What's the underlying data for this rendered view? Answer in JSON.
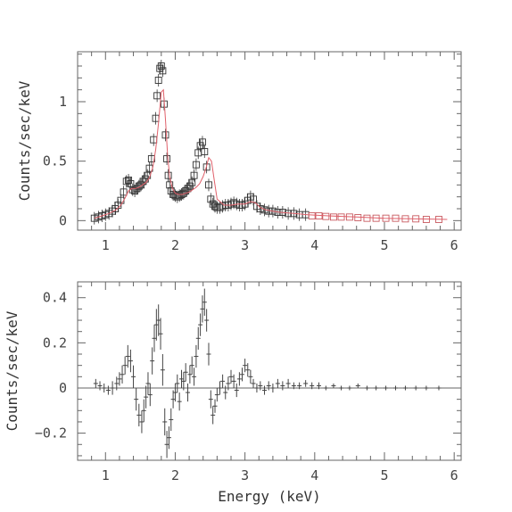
{
  "chart_data": [
    {
      "type": "scatter",
      "panel": "top",
      "ylabel": "Counts/sec/keV",
      "xlabel": "",
      "xlim": [
        0.6,
        6.1
      ],
      "ylim": [
        -0.08,
        1.42
      ],
      "x_ticks": [
        1,
        2,
        3,
        4,
        5,
        6
      ],
      "y_ticks": [
        0,
        0.5,
        1
      ],
      "y_tick_labels": [
        "0",
        "0.5",
        "1"
      ],
      "x_tick_labels": [
        "1",
        "2",
        "3",
        "4",
        "5",
        "6"
      ],
      "grid": false,
      "series": [
        {
          "kind": "data",
          "marker": "square",
          "color": "#333333",
          "x": [
            0.84,
            0.9,
            0.95,
            1.0,
            1.05,
            1.1,
            1.14,
            1.18,
            1.22,
            1.26,
            1.3,
            1.33,
            1.36,
            1.39,
            1.42,
            1.45,
            1.48,
            1.51,
            1.54,
            1.57,
            1.6,
            1.63,
            1.66,
            1.69,
            1.72,
            1.74,
            1.76,
            1.78,
            1.8,
            1.82,
            1.84,
            1.86,
            1.88,
            1.9,
            1.92,
            1.94,
            1.97,
            2.0,
            2.03,
            2.06,
            2.09,
            2.12,
            2.15,
            2.18,
            2.21,
            2.24,
            2.27,
            2.3,
            2.33,
            2.36,
            2.39,
            2.42,
            2.45,
            2.48,
            2.51,
            2.54,
            2.57,
            2.6,
            2.64,
            2.68,
            2.72,
            2.76,
            2.8,
            2.84,
            2.88,
            2.92,
            2.96,
            3.0,
            3.04,
            3.08,
            3.12,
            3.17,
            3.22,
            3.28,
            3.34,
            3.4,
            3.47,
            3.54,
            3.62,
            3.7,
            3.78,
            3.87,
            3.96,
            4.06,
            4.16,
            4.27,
            4.38,
            4.5,
            4.62,
            4.75,
            4.88,
            5.02,
            5.16,
            5.3,
            5.45,
            5.6,
            5.78
          ],
          "y": [
            0.02,
            0.03,
            0.04,
            0.05,
            0.06,
            0.08,
            0.1,
            0.13,
            0.17,
            0.24,
            0.33,
            0.34,
            0.31,
            0.26,
            0.25,
            0.27,
            0.29,
            0.3,
            0.33,
            0.35,
            0.38,
            0.44,
            0.52,
            0.68,
            0.86,
            1.05,
            1.18,
            1.28,
            1.3,
            1.26,
            0.98,
            0.72,
            0.52,
            0.38,
            0.3,
            0.25,
            0.22,
            0.21,
            0.2,
            0.21,
            0.22,
            0.23,
            0.25,
            0.27,
            0.29,
            0.32,
            0.38,
            0.47,
            0.57,
            0.63,
            0.66,
            0.58,
            0.45,
            0.3,
            0.18,
            0.14,
            0.12,
            0.11,
            0.11,
            0.12,
            0.13,
            0.13,
            0.14,
            0.15,
            0.14,
            0.13,
            0.13,
            0.14,
            0.17,
            0.2,
            0.18,
            0.12,
            0.1,
            0.09,
            0.08,
            0.08,
            0.07,
            0.07,
            0.06,
            0.06,
            0.05,
            0.05,
            0.04,
            0.04,
            0.035,
            0.03,
            0.03,
            0.03,
            0.025,
            0.02,
            0.02,
            0.02,
            0.02,
            0.015,
            0.015,
            0.01,
            0.01
          ]
        },
        {
          "kind": "model",
          "color": "#e0606a",
          "x": [
            0.84,
            0.95,
            1.05,
            1.15,
            1.22,
            1.28,
            1.33,
            1.38,
            1.43,
            1.48,
            1.53,
            1.58,
            1.63,
            1.68,
            1.72,
            1.76,
            1.8,
            1.83,
            1.86,
            1.89,
            1.92,
            1.96,
            2.0,
            2.05,
            2.1,
            2.15,
            2.2,
            2.25,
            2.3,
            2.35,
            2.4,
            2.44,
            2.48,
            2.52,
            2.56,
            2.6,
            2.7,
            2.8,
            2.9,
            3.0,
            3.08,
            3.15,
            3.22,
            3.3,
            3.4,
            3.5,
            3.7,
            3.9,
            4.2,
            4.6,
            5.0,
            5.4,
            5.9
          ],
          "y": [
            0.02,
            0.04,
            0.06,
            0.09,
            0.13,
            0.19,
            0.25,
            0.27,
            0.27,
            0.28,
            0.3,
            0.32,
            0.36,
            0.45,
            0.6,
            0.82,
            1.08,
            1.1,
            0.85,
            0.55,
            0.37,
            0.27,
            0.23,
            0.22,
            0.22,
            0.23,
            0.24,
            0.26,
            0.28,
            0.31,
            0.37,
            0.44,
            0.53,
            0.5,
            0.34,
            0.18,
            0.13,
            0.13,
            0.14,
            0.14,
            0.16,
            0.15,
            0.11,
            0.09,
            0.08,
            0.07,
            0.06,
            0.05,
            0.04,
            0.03,
            0.02,
            0.015,
            0.01
          ]
        }
      ]
    },
    {
      "type": "scatter",
      "panel": "bottom",
      "ylabel": "Counts/sec/keV",
      "xlabel": "Energy (keV)",
      "xlim": [
        0.6,
        6.1
      ],
      "ylim": [
        -0.32,
        0.47
      ],
      "x_ticks": [
        1,
        2,
        3,
        4,
        5,
        6
      ],
      "x_tick_labels": [
        "1",
        "2",
        "3",
        "4",
        "5",
        "6"
      ],
      "y_ticks": [
        -0.2,
        0,
        0.2,
        0.4
      ],
      "y_tick_labels": [
        "−0.2",
        "0",
        "0.2",
        "0.4"
      ],
      "zero_line": true,
      "grid": false,
      "series": [
        {
          "kind": "residuals",
          "marker": "errorbar",
          "color": "#444444",
          "x": [
            0.86,
            0.92,
            0.98,
            1.04,
            1.1,
            1.16,
            1.2,
            1.24,
            1.28,
            1.32,
            1.36,
            1.4,
            1.44,
            1.48,
            1.52,
            1.55,
            1.58,
            1.61,
            1.64,
            1.67,
            1.7,
            1.73,
            1.76,
            1.79,
            1.82,
            1.85,
            1.88,
            1.91,
            1.94,
            1.97,
            2.0,
            2.03,
            2.06,
            2.09,
            2.12,
            2.15,
            2.18,
            2.21,
            2.24,
            2.27,
            2.3,
            2.33,
            2.36,
            2.39,
            2.42,
            2.45,
            2.48,
            2.51,
            2.54,
            2.57,
            2.6,
            2.64,
            2.68,
            2.72,
            2.76,
            2.8,
            2.84,
            2.88,
            2.92,
            2.96,
            3.0,
            3.04,
            3.08,
            3.12,
            3.17,
            3.22,
            3.28,
            3.34,
            3.4,
            3.47,
            3.54,
            3.62,
            3.7,
            3.78,
            3.87,
            3.96,
            4.06,
            4.16,
            4.27,
            4.38,
            4.5,
            4.62,
            4.75,
            4.88,
            5.02,
            5.16,
            5.3,
            5.45,
            5.6,
            5.78
          ],
          "y": [
            0.02,
            0.01,
            0.0,
            -0.01,
            0.0,
            0.02,
            0.04,
            0.06,
            0.1,
            0.14,
            0.12,
            0.05,
            -0.05,
            -0.12,
            -0.15,
            -0.1,
            -0.04,
            0.02,
            -0.03,
            0.12,
            0.22,
            0.28,
            0.3,
            0.24,
            0.08,
            -0.15,
            -0.25,
            -0.22,
            -0.14,
            -0.05,
            -0.02,
            0.02,
            -0.06,
            0.04,
            0.03,
            0.07,
            -0.02,
            0.06,
            0.1,
            0.05,
            0.14,
            0.22,
            0.28,
            0.35,
            0.38,
            0.3,
            0.15,
            -0.05,
            -0.12,
            -0.08,
            -0.03,
            0.0,
            0.03,
            -0.02,
            0.02,
            0.05,
            0.03,
            -0.01,
            0.04,
            0.06,
            0.1,
            0.08,
            0.05,
            0.02,
            0.0,
            0.01,
            -0.01,
            0.01,
            0.0,
            0.02,
            0.01,
            0.02,
            0.01,
            0.01,
            0.02,
            0.01,
            0.01,
            0.0,
            0.01,
            0.0,
            0.0,
            0.01,
            0.0,
            0.0,
            0.0,
            0.0,
            0.0,
            0.0,
            0.0,
            0.0
          ],
          "err": [
            0.02,
            0.02,
            0.02,
            0.02,
            0.03,
            0.03,
            0.03,
            0.04,
            0.04,
            0.05,
            0.05,
            0.05,
            0.05,
            0.05,
            0.05,
            0.05,
            0.05,
            0.05,
            0.05,
            0.06,
            0.06,
            0.07,
            0.07,
            0.07,
            0.07,
            0.06,
            0.06,
            0.05,
            0.05,
            0.04,
            0.04,
            0.04,
            0.04,
            0.04,
            0.04,
            0.04,
            0.04,
            0.04,
            0.04,
            0.04,
            0.05,
            0.05,
            0.05,
            0.06,
            0.06,
            0.05,
            0.05,
            0.04,
            0.04,
            0.03,
            0.03,
            0.03,
            0.03,
            0.03,
            0.03,
            0.03,
            0.03,
            0.03,
            0.03,
            0.03,
            0.03,
            0.03,
            0.03,
            0.02,
            0.02,
            0.02,
            0.02,
            0.02,
            0.02,
            0.02,
            0.02,
            0.02,
            0.015,
            0.015,
            0.015,
            0.015,
            0.015,
            0.01,
            0.01,
            0.01,
            0.01,
            0.01,
            0.01,
            0.01,
            0.01,
            0.01,
            0.01,
            0.01,
            0.01,
            0.01
          ]
        }
      ]
    }
  ]
}
